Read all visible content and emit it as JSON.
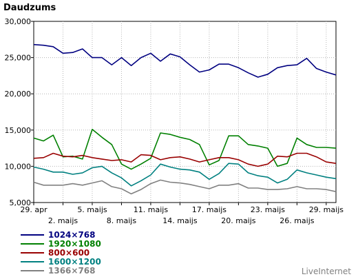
{
  "chart_data": {
    "type": "line",
    "title": "Daudzums",
    "xlabel": "",
    "ylabel": "",
    "ylim": [
      5000,
      30000
    ],
    "yticks": [
      5000,
      10000,
      15000,
      20000,
      25000,
      30000
    ],
    "ytick_labels": [
      "5,000",
      "10,000",
      "15,000",
      "20,000",
      "25,000",
      "30,000"
    ],
    "grid": true,
    "legend_position": "bottom-left",
    "x": [
      "29. apr",
      "30. apr",
      "1. maijs",
      "2. maijs",
      "3. maijs",
      "4. maijs",
      "5. maijs",
      "6. maijs",
      "7. maijs",
      "8. maijs",
      "9. maijs",
      "10. maijs",
      "11. maijs",
      "12. maijs",
      "13. maijs",
      "14. maijs",
      "15. maijs",
      "16. maijs",
      "17. maijs",
      "18. maijs",
      "19. maijs",
      "20. maijs",
      "21. maijs",
      "22. maijs",
      "23. maijs",
      "24. maijs",
      "25. maijs",
      "26. maijs",
      "27. maijs",
      "28. maijs",
      "29. maijs",
      "30. maijs"
    ],
    "xtick_labels": [
      {
        "index": 0,
        "label": "29. apr",
        "row": 1
      },
      {
        "index": 3,
        "label": "2. maijs",
        "row": 2
      },
      {
        "index": 6,
        "label": "5. maijs",
        "row": 1
      },
      {
        "index": 9,
        "label": "8. maijs",
        "row": 2
      },
      {
        "index": 12,
        "label": "11. maijs",
        "row": 1
      },
      {
        "index": 15,
        "label": "14. maijs",
        "row": 2
      },
      {
        "index": 18,
        "label": "17. maijs",
        "row": 1
      },
      {
        "index": 21,
        "label": "20. maijs",
        "row": 2
      },
      {
        "index": 24,
        "label": "23. maijs",
        "row": 1
      },
      {
        "index": 27,
        "label": "26. maijs",
        "row": 2
      },
      {
        "index": 30,
        "label": "29. maijs",
        "row": 1
      }
    ],
    "series": [
      {
        "name": "1024×768",
        "color": "#000080",
        "values": [
          26800,
          26700,
          26500,
          25600,
          25700,
          26200,
          25000,
          25000,
          24000,
          25000,
          23900,
          25000,
          25600,
          24500,
          25500,
          25100,
          24000,
          23000,
          23300,
          24100,
          24100,
          23600,
          22900,
          22300,
          22700,
          23600,
          23900,
          24000,
          24900,
          23500,
          23000,
          22600
        ]
      },
      {
        "name": "1920×1080",
        "color": "#008000",
        "values": [
          13900,
          13500,
          14300,
          11300,
          11400,
          11000,
          15100,
          14000,
          13000,
          10300,
          9600,
          10300,
          11100,
          14600,
          14400,
          14000,
          13700,
          13000,
          10200,
          10800,
          14200,
          14200,
          13000,
          12800,
          12500,
          10000,
          10400,
          13900,
          13000,
          12600,
          12600,
          12500
        ]
      },
      {
        "name": "800×600",
        "color": "#990000",
        "values": [
          11100,
          11200,
          11800,
          11400,
          11300,
          11500,
          11200,
          11000,
          10800,
          10900,
          10600,
          11600,
          11500,
          10900,
          11200,
          11300,
          11000,
          10600,
          10900,
          11200,
          11200,
          10900,
          10300,
          10000,
          10300,
          11400,
          11300,
          11800,
          11800,
          11300,
          10600,
          10400
        ]
      },
      {
        "name": "1600×1200",
        "color": "#008080",
        "values": [
          9900,
          9600,
          9200,
          9200,
          8900,
          9100,
          9800,
          10000,
          9100,
          8400,
          7300,
          8000,
          8800,
          10300,
          9900,
          9600,
          9500,
          9200,
          8200,
          9000,
          10400,
          10300,
          9100,
          8700,
          8500,
          7700,
          8200,
          9500,
          9100,
          8800,
          8500,
          8300
        ]
      },
      {
        "name": "1366×768",
        "color": "#808080",
        "values": [
          7800,
          7400,
          7400,
          7400,
          7600,
          7400,
          7700,
          8000,
          7200,
          6900,
          6200,
          6800,
          7600,
          8100,
          7800,
          7700,
          7500,
          7200,
          6900,
          7400,
          7400,
          7600,
          7000,
          7000,
          6800,
          6800,
          6900,
          7200,
          6900,
          6900,
          6800,
          6500
        ]
      }
    ]
  },
  "credit": "LiveInternet"
}
